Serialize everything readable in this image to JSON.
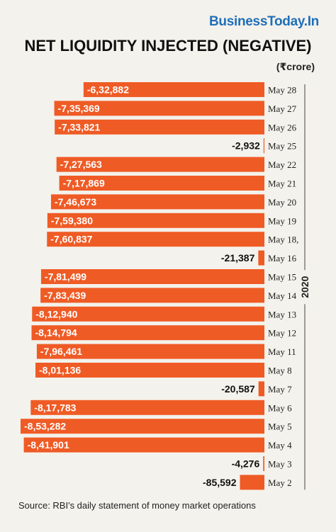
{
  "brand": "BusinessToday.In",
  "title": "NET LIQUIDITY INJECTED (NEGATIVE)",
  "unit": "(₹crore)",
  "source": "Source: RBI's daily statement of money market operations",
  "year_label": "2020",
  "colors": {
    "bar": "#ef5b25",
    "background": "#f4f2ec",
    "brand": "#1f6fb8"
  },
  "chart_data": {
    "type": "bar",
    "orientation": "horizontal",
    "title": "NET LIQUIDITY INJECTED (NEGATIVE)",
    "unit": "(₹crore)",
    "categories": [
      "May 28",
      "May 27",
      "May 26",
      "May 25",
      "May 22",
      "May 21",
      "May 20",
      "May 19",
      "May 18,",
      "May 16",
      "May 15",
      "May 14",
      "May 13",
      "May 12",
      "May 11",
      "May 8",
      "May 7",
      "May 6",
      "May 5",
      "May 4",
      "May 3",
      "May 2"
    ],
    "values": [
      -632882,
      -735369,
      -733821,
      -2932,
      -727563,
      -717869,
      -746673,
      -759380,
      -760837,
      -21387,
      -781499,
      -783439,
      -812940,
      -814794,
      -796461,
      -801136,
      -20587,
      -817783,
      -853282,
      -841901,
      -4276,
      -85592
    ],
    "value_labels": [
      "-6,32,882",
      "-7,35,369",
      "-7,33,821",
      "-2,932",
      "-7,27,563",
      "-7,17,869",
      "-7,46,673",
      "-7,59,380",
      "-7,60,837",
      "-21,387",
      "-7,81,499",
      "-7,83,439",
      "-8,12,940",
      "-8,14,794",
      "-7,96,461",
      "-8,01,136",
      "-20,587",
      "-8,17,783",
      "-8,53,282",
      "-8,41,901",
      "-4,276",
      "-85,592"
    ],
    "year_group": "2020"
  }
}
